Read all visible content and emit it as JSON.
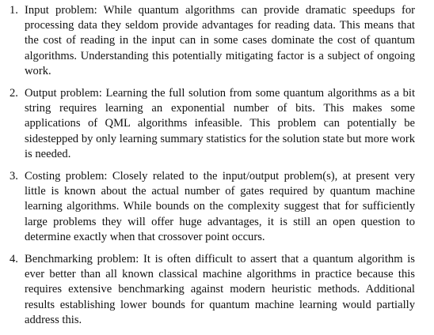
{
  "list": {
    "items": [
      {
        "number": "1.",
        "text": "Input problem: While quantum algorithms can provide dramatic speedups for processing data they seldom provide advantages for reading data. This means that the cost of reading in the input can in some cases dominate the cost of quantum algorithms. Understanding this potentially mitigating factor is a subject of ongoing work."
      },
      {
        "number": "2.",
        "text": "Output problem: Learning the full solution from some quantum algorithms as a bit string requires learning an exponential number of bits. This makes some applications of QML algorithms infeasible. This problem can potentially be sidestepped by only learning summary statistics for the solution state but more work is needed."
      },
      {
        "number": "3.",
        "text": "Costing problem: Closely related to the input/output problem(s), at present very little is known about the actual number of gates required by quantum machine learning algorithms. While bounds on the complexity suggest that for sufficiently large problems they will offer huge advantages, it is still an open question to determine exactly when that crossover point occurs."
      },
      {
        "number": "4.",
        "text": "Benchmarking problem: It is often difficult to assert that a quantum algorithm is ever better than all known classical machine algorithms in practice because this requires extensive benchmarking against modern heuristic methods. Additional results establishing lower bounds for quantum machine learning would partially address this."
      }
    ]
  }
}
